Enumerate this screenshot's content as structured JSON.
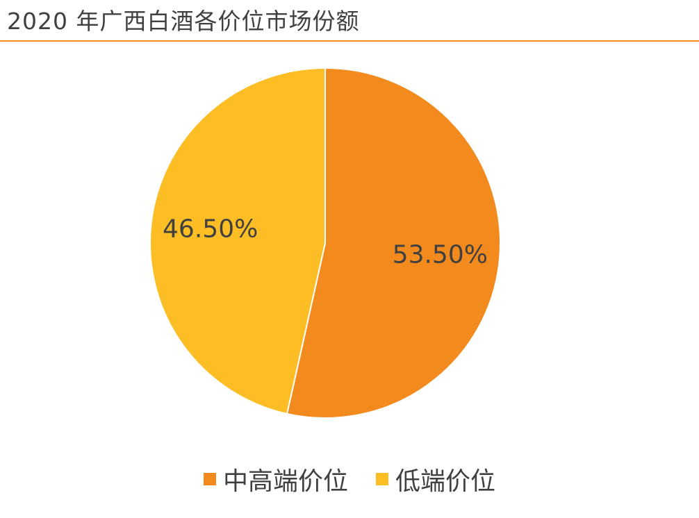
{
  "chart_data": {
    "type": "pie",
    "title": "2020 年广西白酒各价位市场份额",
    "slices": [
      {
        "label": "中高端价位",
        "value": 53.5,
        "display": "53.50%",
        "color": "#f28a1e"
      },
      {
        "label": "低端价位",
        "value": 46.5,
        "display": "46.50%",
        "color": "#fcbd25"
      }
    ],
    "legend_position": "bottom"
  }
}
